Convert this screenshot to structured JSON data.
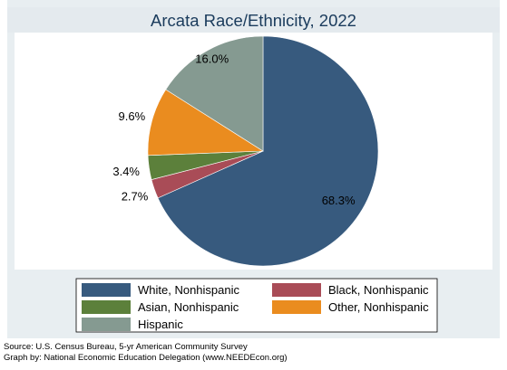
{
  "chart_data": {
    "type": "pie",
    "title": "Arcata Race/Ethnicity, 2022",
    "slices": [
      {
        "label": "White, Nonhispanic",
        "value": 68.3,
        "display": "68.3%",
        "color": "#375a7e"
      },
      {
        "label": "Black, Nonhispanic",
        "value": 2.7,
        "display": "2.7%",
        "color": "#a94c57"
      },
      {
        "label": "Asian, Nonhispanic",
        "value": 3.4,
        "display": "3.4%",
        "color": "#5c803b"
      },
      {
        "label": "Other, Nonhispanic",
        "value": 9.6,
        "display": "9.6%",
        "color": "#ea8c1f"
      },
      {
        "label": "Hispanic",
        "value": 16.0,
        "display": "16.0%",
        "color": "#859a91"
      }
    ],
    "legend_placement": "bottom"
  },
  "footnotes": {
    "source": "Source:  U.S. Census Bureau, 5-yr American Community Survey",
    "graph_by": "Graph by: National Economic Education Delegation (www.NEEDEcon.org)"
  },
  "colors": {
    "outer_background": "#e8eef1",
    "title_band": "#e4eaee",
    "plot_background": "#ffffff",
    "title_text": "#1a3b5c"
  }
}
